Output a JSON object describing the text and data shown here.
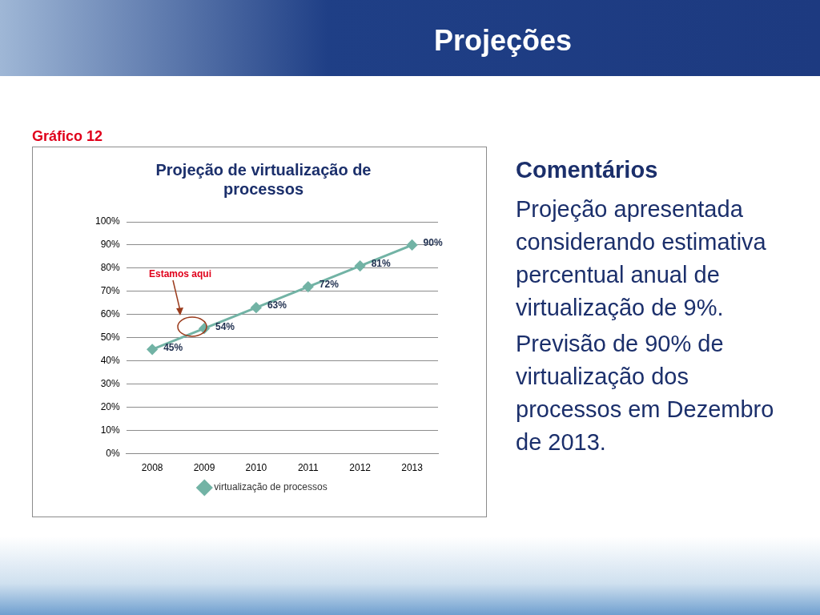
{
  "chart_data": {
    "type": "line",
    "title": "Projeção de virtualização de processos",
    "categories": [
      "2008",
      "2009",
      "2010",
      "2011",
      "2012",
      "2013"
    ],
    "series": [
      {
        "name": "virtualização de processos",
        "color": "#72b3a5",
        "values": [
          45,
          54,
          63,
          72,
          81,
          90
        ],
        "value_labels": [
          "45%",
          "54%",
          "63%",
          "72%",
          "81%",
          "90%"
        ]
      }
    ],
    "ylim": [
      0,
      100
    ],
    "yticks": [
      {
        "value": 0,
        "label": "0%"
      },
      {
        "value": 10,
        "label": "10%"
      },
      {
        "value": 20,
        "label": "20%"
      },
      {
        "value": 30,
        "label": "30%"
      },
      {
        "value": 40,
        "label": "40%"
      },
      {
        "value": 50,
        "label": "50%"
      },
      {
        "value": 60,
        "label": "60%"
      },
      {
        "value": 70,
        "label": "70%"
      },
      {
        "value": 80,
        "label": "80%"
      },
      {
        "value": 90,
        "label": "90%"
      },
      {
        "value": 100,
        "label": "100%"
      }
    ],
    "grid": "y",
    "legend": "bottom",
    "marker": "diamond",
    "line_style": "solid",
    "annotations": [
      "Projeções",
      "Gráfico 12",
      "Estamos aqui",
      "Comentários",
      "Projeção apresentada considerando estimativa percentual anual de virtualização de 9%.",
      "Previsão de 90% de virtualização dos processos em Dezembro de 2013."
    ]
  }
}
